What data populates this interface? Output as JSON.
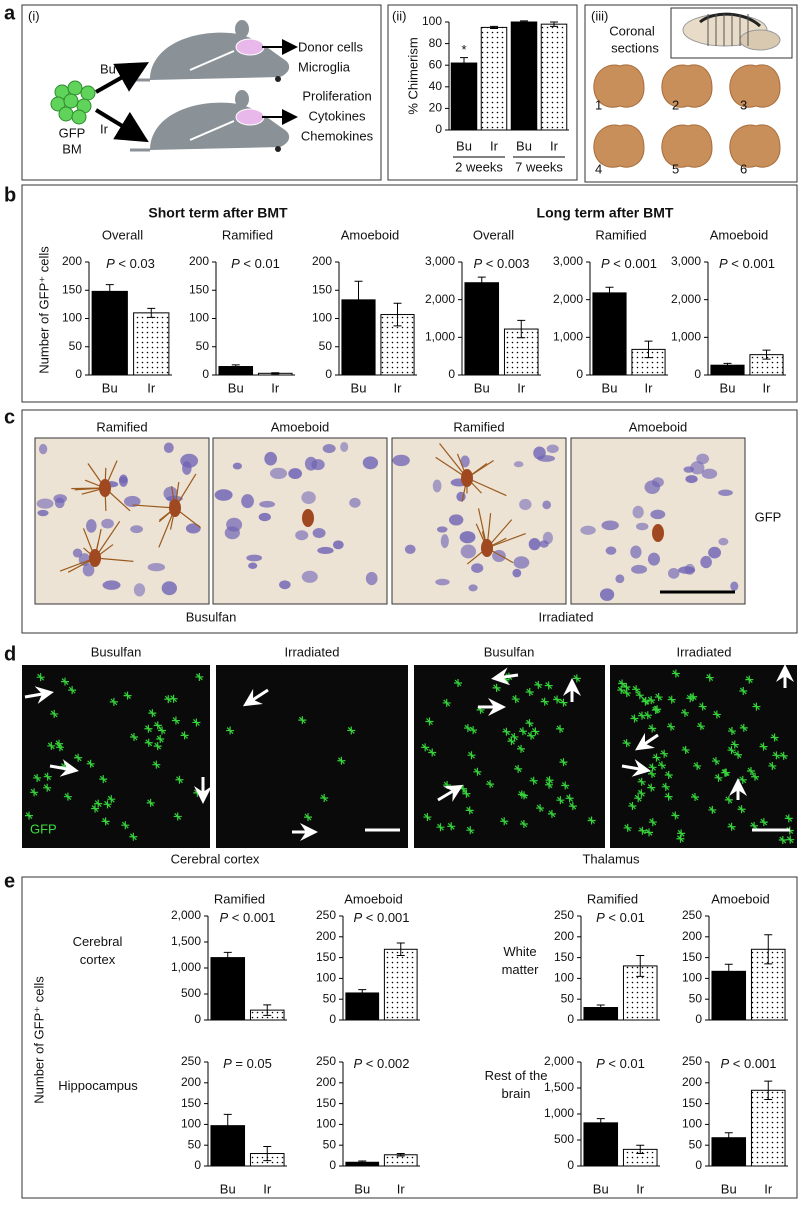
{
  "panels": {
    "letters": [
      "a",
      "b",
      "c",
      "d",
      "e"
    ],
    "a_i": {
      "label": "(i)",
      "top_outputs": [
        "Donor cells",
        "Microglia"
      ],
      "bottom_outputs": [
        "Proliferation",
        "Cytokines",
        "Chemokines"
      ],
      "routes": [
        "Bu",
        "Ir"
      ],
      "source": [
        "GFP",
        "BM"
      ]
    },
    "a_iii": {
      "label": "(iii)",
      "title": [
        "Coronal",
        "sections"
      ],
      "sections": [
        "1",
        "2",
        "3",
        "4",
        "5",
        "6"
      ]
    },
    "b": {
      "ylabel": "Number of GFP⁺ cells",
      "groups": [
        "Short term after BMT",
        "Long term after BMT"
      ]
    },
    "c": {
      "titles": [
        "Ramified",
        "Amoeboid",
        "Ramified",
        "Amoeboid"
      ],
      "stain": "GFP",
      "conditions": [
        "Busulfan",
        "Irradiated"
      ]
    },
    "d": {
      "titles": [
        "Busulfan",
        "Irradiated",
        "Busulfan",
        "Irradiated"
      ],
      "stain": "GFP",
      "regions": [
        "Cerebral cortex",
        "Thalamus"
      ]
    },
    "e": {
      "ylabel": "Number of GFP⁺ cells",
      "rows": [
        "Cerebral cortex",
        "White matter",
        "Hippocampus",
        "Rest of the brain"
      ]
    }
  },
  "chart_data": [
    {
      "type": "bar",
      "label": "(ii)",
      "ylabel": "% Chimerism",
      "categories": [
        "Bu",
        "Ir",
        "Bu",
        "Ir"
      ],
      "values": [
        62,
        95,
        100,
        98
      ],
      "errors": [
        5,
        1,
        1,
        2
      ],
      "markers": [
        "*",
        null,
        null,
        null
      ],
      "groups": [
        "2 weeks",
        "7 weeks"
      ],
      "fills": [
        "solid",
        "dotted",
        "solid",
        "dotted"
      ],
      "ylim": [
        0,
        100
      ],
      "yticks": [
        0,
        20,
        40,
        60,
        80,
        100
      ]
    },
    {
      "type": "bar",
      "title": "Overall",
      "annotation": "P < 0.03",
      "categories": [
        "Bu",
        "Ir"
      ],
      "values": [
        148,
        110
      ],
      "errors": [
        12,
        8
      ],
      "fills": [
        "solid",
        "dotted"
      ],
      "ylim": [
        0,
        200
      ],
      "yticks": [
        0,
        50,
        100,
        150,
        200
      ]
    },
    {
      "type": "bar",
      "title": "Ramified",
      "annotation": "P < 0.01",
      "categories": [
        "Bu",
        "Ir"
      ],
      "values": [
        15,
        3
      ],
      "errors": [
        3,
        1
      ],
      "fills": [
        "solid",
        "dotted"
      ],
      "ylim": [
        0,
        200
      ],
      "yticks": [
        0,
        50,
        100,
        150,
        200
      ]
    },
    {
      "type": "bar",
      "title": "Amoeboid",
      "categories": [
        "Bu",
        "Ir"
      ],
      "values": [
        133,
        107
      ],
      "errors": [
        33,
        20
      ],
      "fills": [
        "solid",
        "dotted"
      ],
      "ylim": [
        0,
        200
      ],
      "yticks": [
        0,
        50,
        100,
        150,
        200
      ]
    },
    {
      "type": "bar",
      "title": "Overall",
      "annotation": "P < 0.003",
      "categories": [
        "Bu",
        "Ir"
      ],
      "values": [
        2450,
        1220
      ],
      "errors": [
        150,
        230
      ],
      "fills": [
        "solid",
        "dotted"
      ],
      "ylim": [
        0,
        3000
      ],
      "yticks": [
        0,
        {
          "value": 1000,
          "label": "1,000"
        },
        {
          "value": 2000,
          "label": "2,000"
        },
        {
          "value": 3000,
          "label": "3,000"
        }
      ]
    },
    {
      "type": "bar",
      "title": "Ramified",
      "annotation": "P < 0.001",
      "categories": [
        "Bu",
        "Ir"
      ],
      "values": [
        2180,
        680
      ],
      "errors": [
        150,
        220
      ],
      "fills": [
        "solid",
        "dotted"
      ],
      "ylim": [
        0,
        3000
      ],
      "yticks": [
        0,
        {
          "value": 1000,
          "label": "1,000"
        },
        {
          "value": 2000,
          "label": "2,000"
        },
        {
          "value": 3000,
          "label": "3,000"
        }
      ]
    },
    {
      "type": "bar",
      "title": "Amoeboid",
      "annotation": "P < 0.001",
      "categories": [
        "Bu",
        "Ir"
      ],
      "values": [
        260,
        540
      ],
      "errors": [
        50,
        120
      ],
      "fills": [
        "solid",
        "dotted"
      ],
      "ylim": [
        0,
        3000
      ],
      "yticks": [
        0,
        {
          "value": 1000,
          "label": "1,000"
        },
        {
          "value": 2000,
          "label": "2,000"
        },
        {
          "value": 3000,
          "label": "3,000"
        }
      ]
    },
    {
      "type": "bar",
      "title": "Ramified",
      "annotation": "P < 0.001",
      "categories": [
        null,
        null
      ],
      "values": [
        1200,
        190
      ],
      "errors": [
        100,
        100
      ],
      "fills": [
        "solid",
        "dotted"
      ],
      "ylim": [
        0,
        2000
      ],
      "yticks": [
        0,
        500,
        {
          "value": 1000,
          "label": "1,000"
        },
        {
          "value": 1500,
          "label": "1,500"
        },
        {
          "value": 2000,
          "label": "2,000"
        }
      ]
    },
    {
      "type": "bar",
      "title": "Amoeboid",
      "annotation": "P < 0.001",
      "categories": [
        null,
        null
      ],
      "values": [
        65,
        170
      ],
      "errors": [
        8,
        15
      ],
      "fills": [
        "solid",
        "dotted"
      ],
      "ylim": [
        0,
        250
      ],
      "yticks": [
        0,
        50,
        100,
        150,
        200,
        250
      ]
    },
    {
      "type": "bar",
      "title": "Ramified",
      "annotation": "P < 0.01",
      "categories": [
        null,
        null
      ],
      "values": [
        30,
        130
      ],
      "errors": [
        6,
        25
      ],
      "fills": [
        "solid",
        "dotted"
      ],
      "ylim": [
        0,
        250
      ],
      "yticks": [
        0,
        50,
        100,
        150,
        200,
        250
      ]
    },
    {
      "type": "bar",
      "title": "Amoeboid",
      "categories": [
        null,
        null
      ],
      "values": [
        117,
        170
      ],
      "errors": [
        17,
        35
      ],
      "fills": [
        "solid",
        "dotted"
      ],
      "ylim": [
        0,
        250
      ],
      "yticks": [
        0,
        50,
        100,
        150,
        200,
        250
      ]
    },
    {
      "type": "bar",
      "annotation": "P = 0.05",
      "categories": [
        "Bu",
        "Ir"
      ],
      "values": [
        97,
        30
      ],
      "errors": [
        27,
        17
      ],
      "fills": [
        "solid",
        "dotted"
      ],
      "ylim": [
        0,
        250
      ],
      "yticks": [
        0,
        50,
        100,
        150,
        200,
        250
      ]
    },
    {
      "type": "bar",
      "annotation": "P < 0.002",
      "categories": [
        "Bu",
        "Ir"
      ],
      "values": [
        9,
        27
      ],
      "errors": [
        3,
        3
      ],
      "fills": [
        "solid",
        "dotted"
      ],
      "ylim": [
        0,
        250
      ],
      "yticks": [
        0,
        50,
        100,
        150,
        200,
        250
      ]
    },
    {
      "type": "bar",
      "annotation": "P < 0.01",
      "categories": [
        "Bu",
        "Ir"
      ],
      "values": [
        830,
        320
      ],
      "errors": [
        80,
        80
      ],
      "fills": [
        "solid",
        "dotted"
      ],
      "ylim": [
        0,
        2000
      ],
      "yticks": [
        0,
        500,
        {
          "value": 1000,
          "label": "1,000"
        },
        {
          "value": 1500,
          "label": "1,500"
        },
        {
          "value": 2000,
          "label": "2,000"
        }
      ]
    },
    {
      "type": "bar",
      "annotation": "P < 0.001",
      "categories": [
        "Bu",
        "Ir"
      ],
      "values": [
        68,
        182
      ],
      "errors": [
        12,
        22
      ],
      "fills": [
        "solid",
        "dotted"
      ],
      "ylim": [
        0,
        250
      ],
      "yticks": [
        0,
        50,
        100,
        150,
        200,
        250
      ]
    }
  ]
}
